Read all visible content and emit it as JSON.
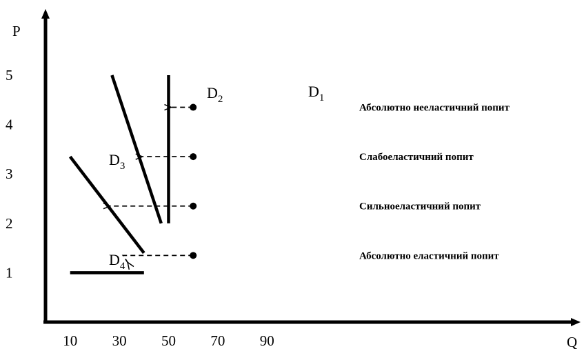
{
  "chart_data": {
    "type": "line",
    "title": "",
    "xlabel": "Q",
    "ylabel": "P",
    "xlim": [
      0,
      100
    ],
    "ylim": [
      0,
      6
    ],
    "x_ticks": [
      10,
      30,
      50,
      70,
      90
    ],
    "y_ticks": [
      1,
      2,
      3,
      4,
      5
    ],
    "grid": false,
    "series": [
      {
        "name": "D1",
        "label_main": "D",
        "label_sub": "1",
        "points": [
          [
            50,
            5
          ],
          [
            50,
            2
          ]
        ]
      },
      {
        "name": "D2",
        "label_main": "D",
        "label_sub": "2",
        "points": [
          [
            27,
            5
          ],
          [
            47,
            2
          ]
        ]
      },
      {
        "name": "D3",
        "label_main": "D",
        "label_sub": "3",
        "points": [
          [
            10,
            3.35
          ],
          [
            40,
            1.4
          ]
        ]
      },
      {
        "name": "D4",
        "label_main": "D",
        "label_sub": "4",
        "points": [
          [
            10,
            1
          ],
          [
            40,
            1
          ]
        ]
      }
    ],
    "annotations": [
      {
        "text": "Абсолютно нееластичний попит",
        "series": "D1",
        "y": 4.35,
        "from_x": 60,
        "to_x": 50
      },
      {
        "text": "Слабоеластичний попит",
        "series": "D2",
        "y": 3.35,
        "from_x": 60,
        "to_x": 38.3
      },
      {
        "text": "Сильноеластичний попит",
        "series": "D3",
        "y": 2.35,
        "from_x": 60,
        "to_x": 25.2
      },
      {
        "text": "Абсолютно еластичний попит",
        "series": "D4",
        "y": 1.35,
        "from_x": 60,
        "to_x": 30,
        "corner_x": 31.5
      }
    ]
  }
}
